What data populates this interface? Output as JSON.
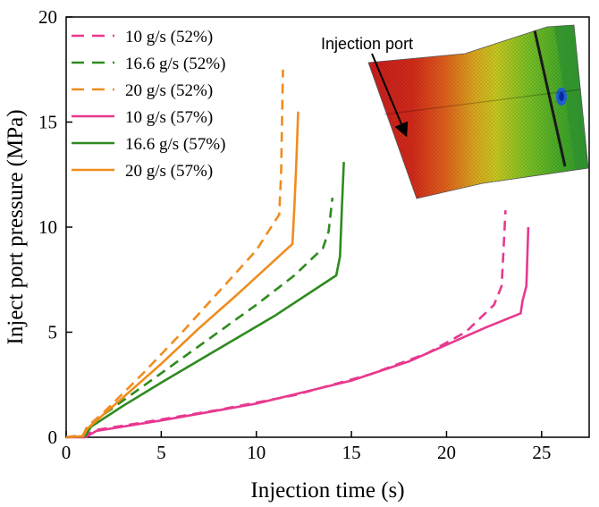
{
  "chart_data": {
    "type": "line",
    "title": "",
    "xlabel": "Injection time (s)",
    "ylabel": "Inject port pressure (MPa)",
    "xlim": [
      0,
      27.5
    ],
    "ylim": [
      0,
      20
    ],
    "xticks": [
      0,
      5,
      10,
      15,
      20,
      25
    ],
    "yticks": [
      0,
      5,
      10,
      15,
      20
    ],
    "xtick_labels": [
      "0",
      "5",
      "10",
      "15",
      "20",
      "25"
    ],
    "ytick_labels": [
      "0",
      "5",
      "10",
      "15",
      "20"
    ],
    "grid": false,
    "legend_position": "top-left",
    "series": [
      {
        "name": "10 g/s (52%)",
        "color": "#e8388f",
        "style": "dashed",
        "points": [
          [
            0,
            0
          ],
          [
            1.0,
            0.1
          ],
          [
            1.6,
            0.35
          ],
          [
            4,
            0.7
          ],
          [
            8,
            1.3
          ],
          [
            12,
            2.0
          ],
          [
            16,
            3.0
          ],
          [
            19,
            4.0
          ],
          [
            21,
            5.0
          ],
          [
            22.5,
            6.3
          ],
          [
            22.9,
            7.2
          ],
          [
            23.0,
            9.0
          ],
          [
            23.1,
            10.8
          ]
        ]
      },
      {
        "name": "16.6 g/s (52%)",
        "color": "#2e8b1e",
        "style": "dashed",
        "points": [
          [
            0,
            0
          ],
          [
            0.9,
            0.1
          ],
          [
            1.1,
            0.5
          ],
          [
            2,
            1.1
          ],
          [
            4,
            2.4
          ],
          [
            6,
            3.7
          ],
          [
            8,
            5.0
          ],
          [
            10,
            6.3
          ],
          [
            12,
            7.7
          ],
          [
            13.5,
            9.0
          ],
          [
            13.8,
            9.8
          ],
          [
            14.0,
            11.4
          ]
        ]
      },
      {
        "name": "20 g/s (52%)",
        "color": "#f08c1e",
        "style": "dashed",
        "points": [
          [
            0,
            0
          ],
          [
            0.9,
            0.1
          ],
          [
            1.1,
            0.5
          ],
          [
            2,
            1.2
          ],
          [
            4,
            3.0
          ],
          [
            6,
            4.9
          ],
          [
            8,
            6.9
          ],
          [
            10,
            8.9
          ],
          [
            11.2,
            10.6
          ],
          [
            11.3,
            12.5
          ],
          [
            11.4,
            17.5
          ]
        ]
      },
      {
        "name": "10 g/s (57%)",
        "color": "#e8388f",
        "style": "solid",
        "points": [
          [
            0,
            0
          ],
          [
            1.0,
            0.0
          ],
          [
            1.6,
            0.3
          ],
          [
            5,
            0.8
          ],
          [
            10,
            1.6
          ],
          [
            15,
            2.7
          ],
          [
            18,
            3.6
          ],
          [
            20,
            4.4
          ],
          [
            22,
            5.2
          ],
          [
            23.9,
            5.9
          ],
          [
            24.0,
            6.5
          ],
          [
            24.2,
            7.2
          ],
          [
            24.3,
            10.0
          ]
        ]
      },
      {
        "name": "16.6 g/s (57%)",
        "color": "#2e8b1e",
        "style": "solid",
        "points": [
          [
            0,
            0
          ],
          [
            1.0,
            0.05
          ],
          [
            1.3,
            0.5
          ],
          [
            3,
            1.5
          ],
          [
            5,
            2.6
          ],
          [
            8,
            4.2
          ],
          [
            11,
            5.8
          ],
          [
            14.2,
            7.7
          ],
          [
            14.4,
            8.6
          ],
          [
            14.5,
            11.0
          ],
          [
            14.6,
            13.1
          ]
        ]
      },
      {
        "name": "20 g/s (57%)",
        "color": "#f08c1e",
        "style": "solid",
        "points": [
          [
            0,
            0
          ],
          [
            0.9,
            0.05
          ],
          [
            1.1,
            0.4
          ],
          [
            3,
            1.9
          ],
          [
            5,
            3.5
          ],
          [
            7,
            5.2
          ],
          [
            9,
            6.8
          ],
          [
            11.9,
            9.2
          ],
          [
            12.0,
            11.0
          ],
          [
            12.1,
            13.0
          ],
          [
            12.2,
            15.5
          ]
        ]
      }
    ],
    "annotations": [
      {
        "text": "Injection port",
        "type": "arrow-label"
      }
    ]
  }
}
